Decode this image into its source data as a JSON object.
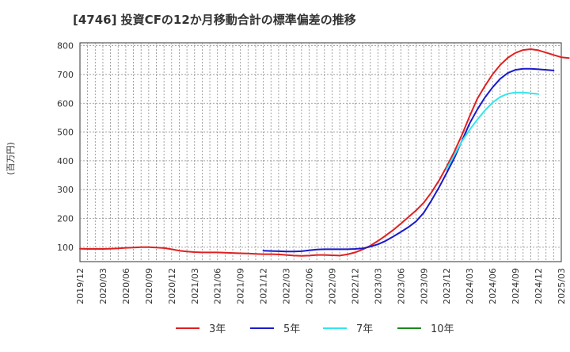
{
  "chart_data": {
    "type": "line",
    "title": "[4746]  投資CFの12か月移動合計の標準偏差の推移",
    "ylabel": "(百万円)",
    "xlabel": "",
    "ylim": [
      50,
      810
    ],
    "yticks": [
      100,
      200,
      300,
      400,
      500,
      600,
      700,
      800
    ],
    "x_categories": [
      "2019/12",
      "2020/03",
      "2020/06",
      "2020/09",
      "2020/12",
      "2021/03",
      "2021/06",
      "2021/09",
      "2021/12",
      "2022/03",
      "2022/06",
      "2022/09",
      "2022/12",
      "2023/03",
      "2023/06",
      "2023/09",
      "2023/12",
      "2024/03",
      "2024/06",
      "2024/09",
      "2024/12",
      "2025/03"
    ],
    "grid": true,
    "legend_position": "bottom",
    "series": [
      {
        "name": "3年",
        "color": "#e02020",
        "start_index": 0,
        "values": [
          95,
          94,
          94,
          94,
          95,
          96,
          98,
          99,
          100,
          100,
          99,
          97,
          93,
          88,
          85,
          83,
          82,
          82,
          82,
          81,
          80,
          79,
          78,
          77,
          76,
          76,
          75,
          73,
          71,
          70,
          71,
          73,
          73,
          72,
          71,
          75,
          82,
          92,
          105,
          122,
          140,
          160,
          182,
          205,
          228,
          255,
          290,
          332,
          380,
          432,
          490,
          555,
          615,
          660,
          700,
          733,
          758,
          775,
          785,
          788,
          784,
          776,
          768,
          760,
          757
        ],
        "dash": "solid"
      },
      {
        "name": "5年",
        "color": "#1a1acc",
        "start_index": 24,
        "values": [
          88,
          87,
          86,
          85,
          85,
          86,
          89,
          92,
          93,
          93,
          93,
          93,
          94,
          96,
          102,
          110,
          122,
          137,
          153,
          170,
          190,
          220,
          262,
          308,
          358,
          410,
          470,
          530,
          578,
          620,
          655,
          685,
          705,
          716,
          720,
          720,
          718,
          716,
          714
        ],
        "dash": "solid"
      },
      {
        "name": "7年",
        "color": "#33e6ee",
        "start_index": 48,
        "values": [
          372,
          420,
          468,
          508,
          543,
          575,
          602,
          622,
          633,
          637,
          637,
          635,
          632
        ],
        "dash": "solid"
      },
      {
        "name": "10年",
        "color": "#1a8a1a",
        "start_index": null,
        "values": [],
        "dash": "solid"
      }
    ]
  }
}
